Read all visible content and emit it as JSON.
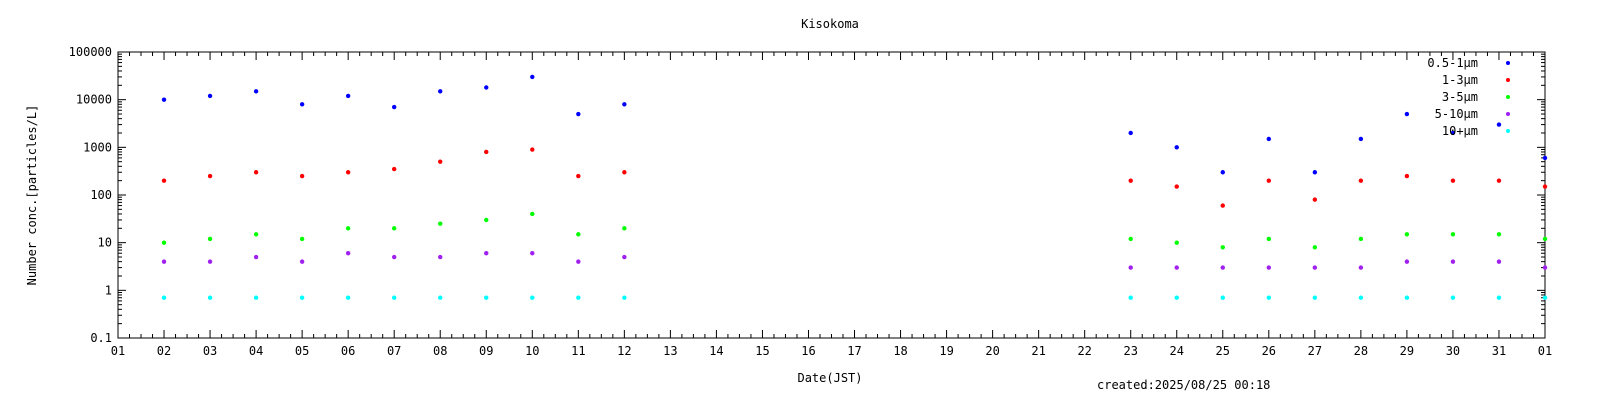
{
  "chart_data": {
    "type": "scatter",
    "title": "Kisokoma",
    "xlabel": "Date(JST)",
    "ylabel": "Number conc.[particles/L]",
    "footer": "created:2025/08/25 00:18",
    "y_scale": "log",
    "ylim": [
      0.1,
      100000
    ],
    "xlim": [
      "2025-07-01",
      "2025-08-01"
    ],
    "x_tick_labels": [
      "01",
      "02",
      "03",
      "04",
      "05",
      "06",
      "07",
      "08",
      "09",
      "10",
      "11",
      "12",
      "13",
      "14",
      "15",
      "16",
      "17",
      "18",
      "19",
      "20",
      "21",
      "22",
      "23",
      "24",
      "25",
      "26",
      "27",
      "28",
      "29",
      "30",
      "31",
      "01"
    ],
    "y_tick_labels": [
      "0.1",
      "1",
      "10",
      "100",
      "1000",
      "10000",
      "100000"
    ],
    "legend_position": "top-right",
    "legend_entries": [
      "0.5-1μm",
      "1-3μm",
      "3-5μm",
      "5-10μm",
      "10+μm"
    ],
    "colors": {
      "0.5-1μm": "#0000ff",
      "1-3μm": "#ff0000",
      "3-5μm": "#00ff00",
      "5-10μm": "#a020f0",
      "10+μm": "#00ffff"
    },
    "series": [
      {
        "name": "0.5-1μm",
        "x": [
          "2025-07-02",
          "2025-07-03",
          "2025-07-04",
          "2025-07-05",
          "2025-07-06",
          "2025-07-07",
          "2025-07-08",
          "2025-07-09",
          "2025-07-10",
          "2025-07-11",
          "2025-07-12",
          "2025-07-23",
          "2025-07-24",
          "2025-07-25",
          "2025-07-26",
          "2025-07-27",
          "2025-07-28",
          "2025-07-29",
          "2025-07-30",
          "2025-07-31",
          "2025-08-01"
        ],
        "y": [
          10000,
          12000,
          15000,
          8000,
          12000,
          7000,
          15000,
          18000,
          30000,
          5000,
          8000,
          2000,
          1000,
          300,
          1500,
          300,
          1500,
          5000,
          2000,
          3000,
          600
        ]
      },
      {
        "name": "1-3μm",
        "x": [
          "2025-07-02",
          "2025-07-03",
          "2025-07-04",
          "2025-07-05",
          "2025-07-06",
          "2025-07-07",
          "2025-07-08",
          "2025-07-09",
          "2025-07-10",
          "2025-07-11",
          "2025-07-12",
          "2025-07-23",
          "2025-07-24",
          "2025-07-25",
          "2025-07-26",
          "2025-07-27",
          "2025-07-28",
          "2025-07-29",
          "2025-07-30",
          "2025-07-31",
          "2025-08-01"
        ],
        "y": [
          200,
          250,
          300,
          250,
          300,
          350,
          500,
          800,
          900,
          250,
          300,
          200,
          150,
          60,
          200,
          80,
          200,
          250,
          200,
          200,
          150
        ]
      },
      {
        "name": "3-5μm",
        "x": [
          "2025-07-02",
          "2025-07-03",
          "2025-07-04",
          "2025-07-05",
          "2025-07-06",
          "2025-07-07",
          "2025-07-08",
          "2025-07-09",
          "2025-07-10",
          "2025-07-11",
          "2025-07-12",
          "2025-07-23",
          "2025-07-24",
          "2025-07-25",
          "2025-07-26",
          "2025-07-27",
          "2025-07-28",
          "2025-07-29",
          "2025-07-30",
          "2025-07-31",
          "2025-08-01"
        ],
        "y": [
          10,
          12,
          15,
          12,
          20,
          20,
          25,
          30,
          40,
          15,
          20,
          12,
          10,
          8,
          12,
          8,
          12,
          15,
          15,
          15,
          12
        ]
      },
      {
        "name": "5-10μm",
        "x": [
          "2025-07-02",
          "2025-07-03",
          "2025-07-04",
          "2025-07-05",
          "2025-07-06",
          "2025-07-07",
          "2025-07-08",
          "2025-07-09",
          "2025-07-10",
          "2025-07-11",
          "2025-07-12",
          "2025-07-23",
          "2025-07-24",
          "2025-07-25",
          "2025-07-26",
          "2025-07-27",
          "2025-07-28",
          "2025-07-29",
          "2025-07-30",
          "2025-07-31",
          "2025-08-01"
        ],
        "y": [
          4,
          4,
          5,
          4,
          6,
          5,
          5,
          6,
          6,
          4,
          5,
          3,
          3,
          3,
          3,
          3,
          3,
          4,
          4,
          4,
          3
        ]
      },
      {
        "name": "10+μm",
        "x": [
          "2025-07-02",
          "2025-07-03",
          "2025-07-04",
          "2025-07-05",
          "2025-07-06",
          "2025-07-07",
          "2025-07-08",
          "2025-07-09",
          "2025-07-10",
          "2025-07-11",
          "2025-07-12",
          "2025-07-23",
          "2025-07-24",
          "2025-07-25",
          "2025-07-26",
          "2025-07-27",
          "2025-07-28",
          "2025-07-29",
          "2025-07-30",
          "2025-07-31",
          "2025-08-01"
        ],
        "y": [
          0.7,
          0.7,
          0.7,
          0.7,
          0.7,
          0.7,
          0.7,
          0.7,
          0.7,
          0.7,
          0.7,
          0.7,
          0.7,
          0.7,
          0.7,
          0.7,
          0.7,
          0.7,
          0.7,
          0.7,
          0.7
        ]
      }
    ]
  }
}
